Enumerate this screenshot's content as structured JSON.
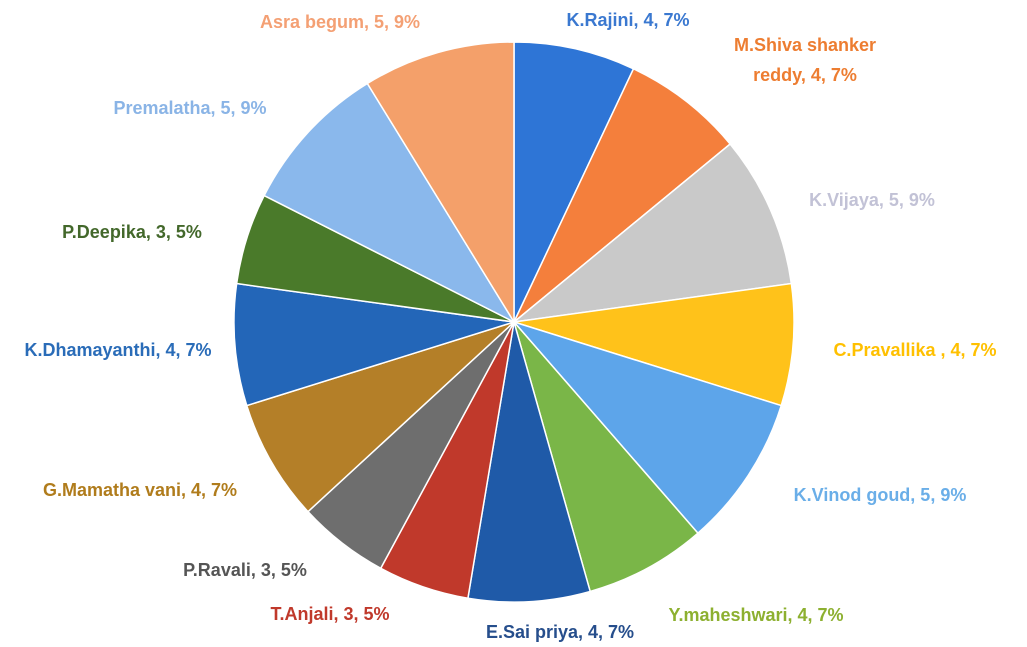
{
  "chart_data": {
    "type": "pie",
    "categories": [
      "K.Rajini, 4, 7%",
      "M.Shiva shanker reddy, 4, 7%",
      "K.Vijaya, 5, 9%",
      "C.Pravallika , 4, 7%",
      "K.Vinod goud, 5, 9%",
      "Y.maheshwari, 4, 7%",
      "E.Sai priya, 4, 7%",
      "T.Anjali, 3, 5%",
      "P.Ravali, 3, 5%",
      "G.Mamatha vani, 4, 7%",
      "K.Dhamayanthi, 4, 7%",
      "P.Deepika, 3, 5%",
      "Premalatha, 5, 9%",
      "Asra begum, 5, 9%"
    ],
    "values": [
      4,
      4,
      5,
      4,
      5,
      4,
      4,
      3,
      3,
      4,
      4,
      3,
      5,
      5
    ],
    "colors": [
      "#2e75d6",
      "#f47f3c",
      "#c9c9c9",
      "#ffc21a",
      "#5da5ea",
      "#7ab648",
      "#1f5aa8",
      "#c0392b",
      "#6e6e6e",
      "#b47f28",
      "#2366b8",
      "#4a7a2a",
      "#8ab8ec",
      "#f4a06a"
    ],
    "label_colors": [
      "#3a78d0",
      "#ed7d31",
      "#c2c2d6",
      "#ffc000",
      "#6aaee8",
      "#8db030",
      "#264e8c",
      "#c0392b",
      "#555555",
      "#b07c1c",
      "#2a6cb8",
      "#43682b",
      "#8ab4e6",
      "#f4a074"
    ]
  }
}
